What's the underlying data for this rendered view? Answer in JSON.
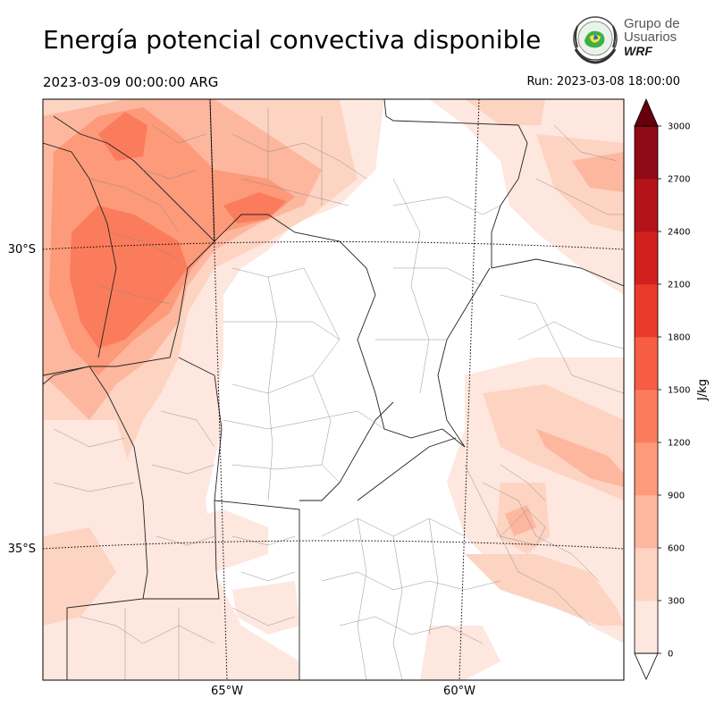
{
  "header": {
    "title": "Energía potencial convectiva disponible",
    "valid_time": "2023-03-09 00:00:00 ARG",
    "run_time": "Run: 2023-03-08 18:00:00"
  },
  "logo": {
    "line1": "Grupo de",
    "line2": "Usuarios",
    "line3": "WRF",
    "icon": "wrf-globe-emblem-icon"
  },
  "map": {
    "lat_labels": [
      "30°S",
      "35°S"
    ],
    "lon_labels": [
      "65°W",
      "60°W"
    ],
    "field": "CAPE"
  },
  "colorbar": {
    "label": "J/kg",
    "ticks": [
      "0",
      "300",
      "600",
      "900",
      "1200",
      "1500",
      "1800",
      "2100",
      "2400",
      "2700",
      "3000"
    ],
    "colors": [
      "#fee7df",
      "#fdd3c2",
      "#fcb79e",
      "#fc9a79",
      "#fb7c5c",
      "#f65d43",
      "#eb3a2c",
      "#d1201e",
      "#b41318",
      "#8e0a14"
    ],
    "over_color": "#67000d",
    "under_color": "#ffffff"
  }
}
